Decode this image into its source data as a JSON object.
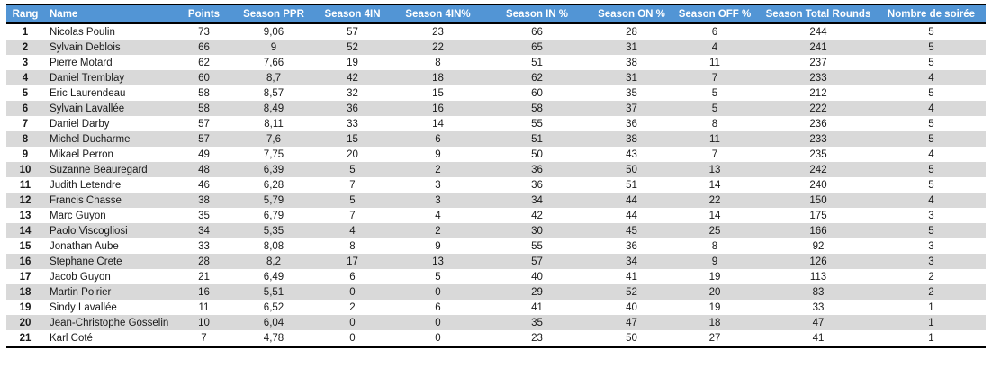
{
  "colors": {
    "header_bg": "#5295d5",
    "header_text": "#ffffff",
    "stripe_bg": "#d9d9d9",
    "border": "#000000"
  },
  "table": {
    "columns": [
      {
        "key": "rang",
        "label": "Rang"
      },
      {
        "key": "name",
        "label": "Name"
      },
      {
        "key": "points",
        "label": "Points"
      },
      {
        "key": "season-ppr",
        "label": "Season PPR"
      },
      {
        "key": "season-4in",
        "label": "Season 4IN"
      },
      {
        "key": "season-4in-pct",
        "label": "Season 4IN%"
      },
      {
        "key": "season-in-pct",
        "label": "Season IN %"
      },
      {
        "key": "season-on-pct",
        "label": "Season ON %"
      },
      {
        "key": "season-off-pct",
        "label": "Season OFF %"
      },
      {
        "key": "season-total-rounds",
        "label": "Season Total Rounds"
      },
      {
        "key": "nombre-de-soiree",
        "label": "Nombre de soirée"
      }
    ],
    "rows": [
      [
        "1",
        "Nicolas Poulin",
        "73",
        "9,06",
        "57",
        "23",
        "66",
        "28",
        "6",
        "244",
        "5"
      ],
      [
        "2",
        "Sylvain Deblois",
        "66",
        "9",
        "52",
        "22",
        "65",
        "31",
        "4",
        "241",
        "5"
      ],
      [
        "3",
        "Pierre Motard",
        "62",
        "7,66",
        "19",
        "8",
        "51",
        "38",
        "11",
        "237",
        "5"
      ],
      [
        "4",
        "Daniel Tremblay",
        "60",
        "8,7",
        "42",
        "18",
        "62",
        "31",
        "7",
        "233",
        "4"
      ],
      [
        "5",
        "Eric Laurendeau",
        "58",
        "8,57",
        "32",
        "15",
        "60",
        "35",
        "5",
        "212",
        "5"
      ],
      [
        "6",
        "Sylvain Lavallée",
        "58",
        "8,49",
        "36",
        "16",
        "58",
        "37",
        "5",
        "222",
        "4"
      ],
      [
        "7",
        "Daniel Darby",
        "57",
        "8,11",
        "33",
        "14",
        "55",
        "36",
        "8",
        "236",
        "5"
      ],
      [
        "8",
        "Michel Ducharme",
        "57",
        "7,6",
        "15",
        "6",
        "51",
        "38",
        "11",
        "233",
        "5"
      ],
      [
        "9",
        "Mikael Perron",
        "49",
        "7,75",
        "20",
        "9",
        "50",
        "43",
        "7",
        "235",
        "4"
      ],
      [
        "10",
        "Suzanne Beauregard",
        "48",
        "6,39",
        "5",
        "2",
        "36",
        "50",
        "13",
        "242",
        "5"
      ],
      [
        "11",
        "Judith Letendre",
        "46",
        "6,28",
        "7",
        "3",
        "36",
        "51",
        "14",
        "240",
        "5"
      ],
      [
        "12",
        "Francis Chasse",
        "38",
        "5,79",
        "5",
        "3",
        "34",
        "44",
        "22",
        "150",
        "4"
      ],
      [
        "13",
        "Marc Guyon",
        "35",
        "6,79",
        "7",
        "4",
        "42",
        "44",
        "14",
        "175",
        "3"
      ],
      [
        "14",
        "Paolo Viscogliosi",
        "34",
        "5,35",
        "4",
        "2",
        "30",
        "45",
        "25",
        "166",
        "5"
      ],
      [
        "15",
        "Jonathan Aube",
        "33",
        "8,08",
        "8",
        "9",
        "55",
        "36",
        "8",
        "92",
        "3"
      ],
      [
        "16",
        "Stephane Crete",
        "28",
        "8,2",
        "17",
        "13",
        "57",
        "34",
        "9",
        "126",
        "3"
      ],
      [
        "17",
        "Jacob Guyon",
        "21",
        "6,49",
        "6",
        "5",
        "40",
        "41",
        "19",
        "113",
        "2"
      ],
      [
        "18",
        "Martin Poirier",
        "16",
        "5,51",
        "0",
        "0",
        "29",
        "52",
        "20",
        "83",
        "2"
      ],
      [
        "19",
        "Sindy Lavallée",
        "11",
        "6,52",
        "2",
        "6",
        "41",
        "40",
        "19",
        "33",
        "1"
      ],
      [
        "20",
        "Jean-Christophe Gosselin",
        "10",
        "6,04",
        "0",
        "0",
        "35",
        "47",
        "18",
        "47",
        "1"
      ],
      [
        "21",
        "Karl Coté",
        "7",
        "4,78",
        "0",
        "0",
        "23",
        "50",
        "27",
        "41",
        "1"
      ]
    ]
  }
}
